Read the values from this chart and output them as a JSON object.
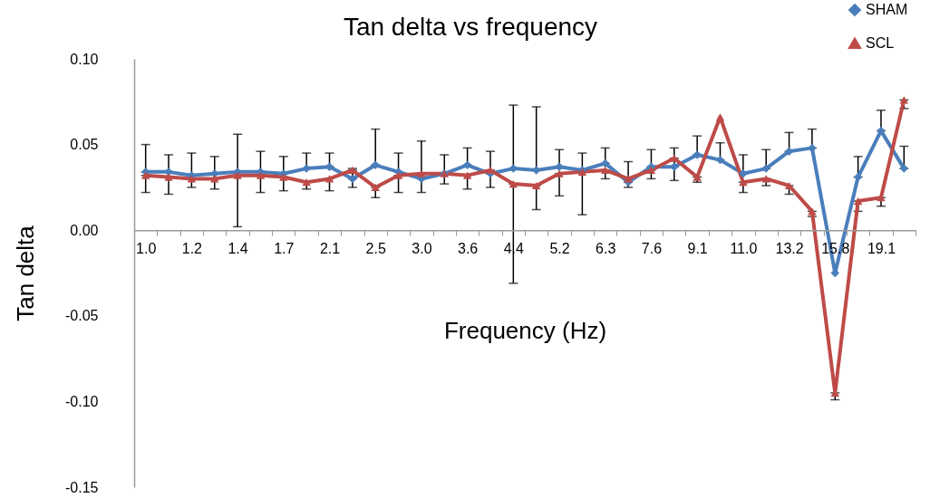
{
  "chart_data": {
    "type": "line",
    "title": "Tan delta vs frequency",
    "xlabel": "Frequency (Hz)",
    "ylabel": "Tan delta",
    "categories": [
      "1.0",
      null,
      "1.2",
      null,
      "1.4",
      null,
      "1.7",
      null,
      "2.1",
      null,
      "2.5",
      null,
      "3.0",
      null,
      "3.6",
      null,
      "4.4",
      null,
      "5.2",
      null,
      "6.3",
      null,
      "7.6",
      null,
      "9.1",
      null,
      "11.0",
      null,
      "13.2",
      null,
      "15.8",
      null,
      "19.1",
      null
    ],
    "series": [
      {
        "name": "SHAM",
        "color": "#4a7ebb",
        "marker": "diamond",
        "values": [
          0.034,
          0.034,
          0.032,
          0.033,
          0.034,
          0.034,
          0.033,
          0.036,
          0.037,
          0.03,
          0.038,
          0.034,
          0.03,
          0.033,
          0.038,
          0.033,
          0.036,
          0.035,
          0.037,
          0.035,
          0.039,
          0.028,
          0.037,
          0.037,
          0.044,
          0.041,
          0.033,
          0.036,
          0.046,
          0.048,
          -0.025,
          0.031,
          0.058,
          0.036
        ],
        "errors": [
          [
            0.034,
            0.05
          ],
          [
            0.034,
            0.044
          ],
          [
            0.032,
            0.045
          ],
          [
            0.033,
            0.043
          ],
          [
            0.034,
            0.056
          ],
          [
            0.034,
            0.046
          ],
          [
            0.033,
            0.043
          ],
          [
            0.036,
            0.045
          ],
          [
            0.037,
            0.045
          ],
          [
            0.03,
            0.036
          ],
          [
            0.038,
            0.059
          ],
          [
            0.034,
            0.045
          ],
          [
            0.03,
            0.052
          ],
          [
            0.033,
            0.044
          ],
          [
            0.038,
            0.048
          ],
          [
            0.033,
            0.046
          ],
          [
            0.036,
            0.073
          ],
          [
            0.035,
            0.072
          ],
          [
            0.037,
            0.047
          ],
          [
            0.035,
            0.045
          ],
          [
            0.039,
            0.048
          ],
          [
            0.028,
            0.04
          ],
          [
            0.037,
            0.047
          ],
          [
            0.037,
            0.048
          ],
          [
            0.044,
            0.055
          ],
          [
            0.041,
            0.051
          ],
          [
            0.033,
            0.044
          ],
          [
            0.036,
            0.047
          ],
          [
            0.046,
            0.057
          ],
          [
            0.048,
            0.059
          ],
          null,
          [
            0.031,
            0.043
          ],
          [
            0.058,
            0.07
          ],
          [
            0.036,
            0.049
          ]
        ]
      },
      {
        "name": "SCL",
        "color": "#be4b48",
        "marker": "triangle",
        "values": [
          0.032,
          0.031,
          0.03,
          0.03,
          0.032,
          0.032,
          0.031,
          0.028,
          0.03,
          0.035,
          0.025,
          0.032,
          0.033,
          0.033,
          0.032,
          0.035,
          0.027,
          0.026,
          0.033,
          0.034,
          0.035,
          0.03,
          0.035,
          0.042,
          0.031,
          0.066,
          0.028,
          0.03,
          0.026,
          0.011,
          -0.095,
          0.017,
          0.019,
          0.076
        ],
        "errors": [
          [
            0.022,
            0.032
          ],
          [
            0.021,
            0.031
          ],
          [
            0.025,
            0.03
          ],
          [
            0.024,
            0.03
          ],
          [
            0.002,
            0.032
          ],
          [
            0.022,
            0.032
          ],
          [
            0.023,
            0.031
          ],
          [
            0.024,
            0.028
          ],
          [
            0.023,
            0.03
          ],
          [
            0.025,
            0.035
          ],
          [
            0.019,
            0.025
          ],
          [
            0.022,
            0.032
          ],
          [
            0.022,
            0.033
          ],
          [
            0.027,
            0.033
          ],
          [
            0.024,
            0.032
          ],
          [
            0.025,
            0.035
          ],
          [
            -0.031,
            0.027
          ],
          [
            0.012,
            0.026
          ],
          [
            0.02,
            0.033
          ],
          [
            0.009,
            0.034
          ],
          [
            0.03,
            0.035
          ],
          [
            0.025,
            0.03
          ],
          [
            0.03,
            0.035
          ],
          [
            0.029,
            0.042
          ],
          [
            0.028,
            0.031
          ],
          null,
          [
            0.022,
            0.028
          ],
          [
            0.026,
            0.03
          ],
          [
            0.021,
            0.026
          ],
          [
            0.008,
            0.011
          ],
          [
            -0.099,
            -0.095
          ],
          [
            0.011,
            0.017
          ],
          [
            0.014,
            0.019
          ],
          [
            0.071,
            0.076
          ]
        ]
      }
    ],
    "ylim": [
      -0.15,
      0.1
    ],
    "yticks": [
      {
        "value": -0.15,
        "label": "-0.15"
      },
      {
        "value": -0.1,
        "label": "-0.10"
      },
      {
        "value": -0.05,
        "label": "-0.05"
      },
      {
        "value": 0,
        "label": "0.00"
      },
      {
        "value": 0.05,
        "label": "0.05"
      },
      {
        "value": 0.1,
        "label": "0.10"
      }
    ],
    "legend": "top right"
  }
}
